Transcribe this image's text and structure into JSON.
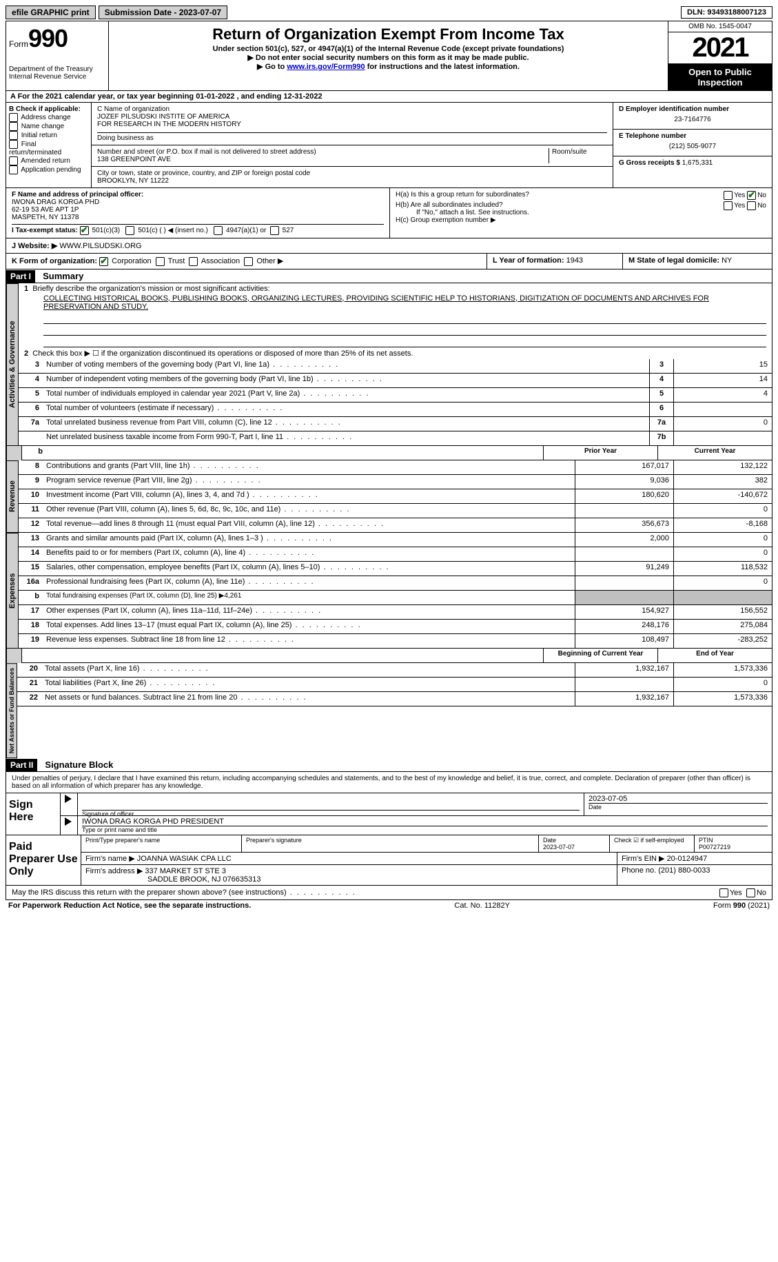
{
  "topbar": {
    "efile": "efile GRAPHIC print",
    "submission": "Submission Date - 2023-07-07",
    "dln": "DLN: 93493188007123"
  },
  "header": {
    "form_label": "Form",
    "form_num": "990",
    "dept": "Department of the Treasury",
    "irs": "Internal Revenue Service",
    "title": "Return of Organization Exempt From Income Tax",
    "sub1": "Under section 501(c), 527, or 4947(a)(1) of the Internal Revenue Code (except private foundations)",
    "sub2": "▶ Do not enter social security numbers on this form as it may be made public.",
    "sub3_pre": "▶ Go to ",
    "sub3_link": "www.irs.gov/Form990",
    "sub3_post": " for instructions and the latest information.",
    "omb": "OMB No. 1545-0047",
    "year": "2021",
    "open": "Open to Public Inspection"
  },
  "rowA": "A For the 2021 calendar year, or tax year beginning 01-01-2022   , and ending 12-31-2022",
  "B": {
    "title": "B Check if applicable:",
    "items": [
      "Address change",
      "Name change",
      "Initial return",
      "Final return/terminated",
      "Amended return",
      "Application pending"
    ]
  },
  "C": {
    "name_label": "C Name of organization",
    "name1": "JOZEF PILSUDSKI INSTITE OF AMERICA",
    "name2": "FOR RESEARCH IN THE MODERN HISTORY",
    "dba": "Doing business as",
    "addr_label": "Number and street (or P.O. box if mail is not delivered to street address)",
    "room": "Room/suite",
    "addr": "138 GREENPOINT AVE",
    "city_label": "City or town, state or province, country, and ZIP or foreign postal code",
    "city": "BROOKLYN, NY  11222"
  },
  "D": {
    "label": "D Employer identification number",
    "value": "23-7164776"
  },
  "E": {
    "label": "E Telephone number",
    "value": "(212) 505-9077"
  },
  "G": {
    "label": "G Gross receipts $",
    "value": "1,675,331"
  },
  "F": {
    "label": "F  Name and address of principal officer:",
    "name": "IWONA DRAG KORGA PHD",
    "addr1": "62-19 53 AVE APT 1P",
    "addr2": "MASPETH, NY  11378"
  },
  "H": {
    "a": "H(a)  Is this a group return for subordinates?",
    "b": "H(b)  Are all subordinates included?",
    "b_note": "If \"No,\" attach a list. See instructions.",
    "c": "H(c)  Group exemption number ▶",
    "yes": "Yes",
    "no": "No"
  },
  "I": {
    "label": "I  Tax-exempt status:",
    "opt1": "501(c)(3)",
    "opt2": "501(c) (  ) ◀ (insert no.)",
    "opt3": "4947(a)(1) or",
    "opt4": "527"
  },
  "J": {
    "label": "J  Website: ▶",
    "value": "WWW.PILSUDSKI.ORG"
  },
  "K": {
    "label": "K Form of organization:",
    "opts": [
      "Corporation",
      "Trust",
      "Association",
      "Other ▶"
    ]
  },
  "L": {
    "label": "L Year of formation:",
    "value": "1943"
  },
  "M": {
    "label": "M State of legal domicile:",
    "value": "NY"
  },
  "part1": {
    "header": "Part I",
    "title": "Summary",
    "line1_label": "Briefly describe the organization's mission or most significant activities:",
    "mission": "COLLECTING HISTORICAL BOOKS, PUBLISHING BOOKS, ORGANIZING LECTURES, PROVIDING SCIENTIFIC HELP TO HISTORIANS, DIGITIZATION OF DOCUMENTS AND ARCHIVES FOR PRESERVATION AND STUDY.",
    "line2": "Check this box ▶ ☐  if the organization discontinued its operations or disposed of more than 25% of its net assets.",
    "lines_single": [
      {
        "n": "3",
        "d": "Number of voting members of the governing body (Part VI, line 1a)",
        "box": "3",
        "v": "15"
      },
      {
        "n": "4",
        "d": "Number of independent voting members of the governing body (Part VI, line 1b)",
        "box": "4",
        "v": "14"
      },
      {
        "n": "5",
        "d": "Total number of individuals employed in calendar year 2021 (Part V, line 2a)",
        "box": "5",
        "v": "4"
      },
      {
        "n": "6",
        "d": "Total number of volunteers (estimate if necessary)",
        "box": "6",
        "v": ""
      },
      {
        "n": "7a",
        "d": "Total unrelated business revenue from Part VIII, column (C), line 12",
        "box": "7a",
        "v": "0"
      },
      {
        "n": "",
        "d": "Net unrelated business taxable income from Form 990-T, Part I, line 11",
        "box": "7b",
        "v": ""
      }
    ],
    "head_prior": "Prior Year",
    "head_current": "Current Year",
    "revenue": [
      {
        "n": "8",
        "d": "Contributions and grants (Part VIII, line 1h)",
        "p": "167,017",
        "c": "132,122"
      },
      {
        "n": "9",
        "d": "Program service revenue (Part VIII, line 2g)",
        "p": "9,036",
        "c": "382"
      },
      {
        "n": "10",
        "d": "Investment income (Part VIII, column (A), lines 3, 4, and 7d )",
        "p": "180,620",
        "c": "-140,672"
      },
      {
        "n": "11",
        "d": "Other revenue (Part VIII, column (A), lines 5, 6d, 8c, 9c, 10c, and 11e)",
        "p": "",
        "c": "0"
      },
      {
        "n": "12",
        "d": "Total revenue—add lines 8 through 11 (must equal Part VIII, column (A), line 12)",
        "p": "356,673",
        "c": "-8,168"
      }
    ],
    "expenses": [
      {
        "n": "13",
        "d": "Grants and similar amounts paid (Part IX, column (A), lines 1–3 )",
        "p": "2,000",
        "c": "0"
      },
      {
        "n": "14",
        "d": "Benefits paid to or for members (Part IX, column (A), line 4)",
        "p": "",
        "c": "0"
      },
      {
        "n": "15",
        "d": "Salaries, other compensation, employee benefits (Part IX, column (A), lines 5–10)",
        "p": "91,249",
        "c": "118,532"
      },
      {
        "n": "16a",
        "d": "Professional fundraising fees (Part IX, column (A), line 11e)",
        "p": "",
        "c": "0"
      },
      {
        "n": "b",
        "d": "Total fundraising expenses (Part IX, column (D), line 25) ▶4,261",
        "shade": true
      },
      {
        "n": "17",
        "d": "Other expenses (Part IX, column (A), lines 11a–11d, 11f–24e)",
        "p": "154,927",
        "c": "156,552"
      },
      {
        "n": "18",
        "d": "Total expenses. Add lines 13–17 (must equal Part IX, column (A), line 25)",
        "p": "248,176",
        "c": "275,084"
      },
      {
        "n": "19",
        "d": "Revenue less expenses. Subtract line 18 from line 12",
        "p": "108,497",
        "c": "-283,252"
      }
    ],
    "head_begin": "Beginning of Current Year",
    "head_end": "End of Year",
    "netassets": [
      {
        "n": "20",
        "d": "Total assets (Part X, line 16)",
        "p": "1,932,167",
        "c": "1,573,336"
      },
      {
        "n": "21",
        "d": "Total liabilities (Part X, line 26)",
        "p": "",
        "c": "0"
      },
      {
        "n": "22",
        "d": "Net assets or fund balances. Subtract line 21 from line 20",
        "p": "1,932,167",
        "c": "1,573,336"
      }
    ],
    "tabs": {
      "gov": "Activities & Governance",
      "rev": "Revenue",
      "exp": "Expenses",
      "net": "Net Assets or Fund Balances"
    }
  },
  "part2": {
    "header": "Part II",
    "title": "Signature Block",
    "decl": "Under penalties of perjury, I declare that I have examined this return, including accompanying schedules and statements, and to the best of my knowledge and belief, it is true, correct, and complete. Declaration of preparer (other than officer) is based on all information of which preparer has any knowledge.",
    "sign_here": "Sign Here",
    "sig_officer": "Signature of officer",
    "sig_date": "2023-07-05",
    "date": "Date",
    "officer_name": "IWONA DRAG KORGA PHD  PRESIDENT",
    "name_title": "Type or print name and title",
    "paid": "Paid Preparer Use Only",
    "prep_name_label": "Print/Type preparer's name",
    "prep_sig_label": "Preparer's signature",
    "prep_date_label": "Date",
    "prep_date": "2023-07-07",
    "check_if": "Check ☑ if self-employed",
    "ptin_label": "PTIN",
    "ptin": "P00727219",
    "firm_name_label": "Firm's name    ▶",
    "firm_name": "JOANNA WASIAK CPA LLC",
    "firm_ein_label": "Firm's EIN ▶",
    "firm_ein": "20-0124947",
    "firm_addr_label": "Firm's address ▶",
    "firm_addr1": "337 MARKET ST STE 3",
    "firm_addr2": "SADDLE BROOK, NJ  076635313",
    "phone_label": "Phone no.",
    "phone": "(201) 880-0033",
    "discuss": "May the IRS discuss this return with the preparer shown above? (see instructions)"
  },
  "footer": {
    "left": "For Paperwork Reduction Act Notice, see the separate instructions.",
    "mid": "Cat. No. 11282Y",
    "right": "Form 990 (2021)"
  }
}
